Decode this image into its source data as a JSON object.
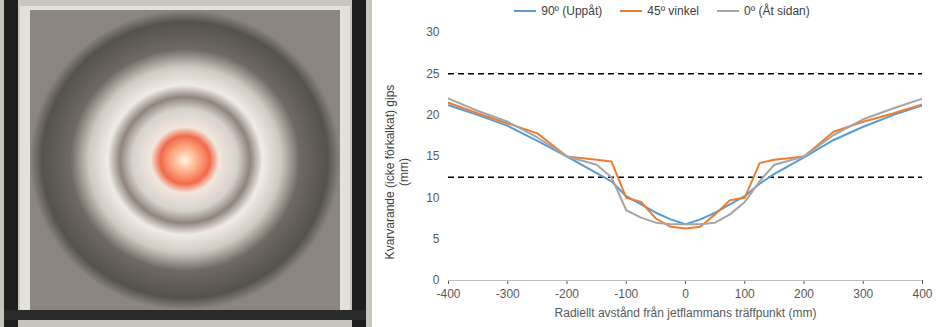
{
  "chart_data": {
    "type": "line",
    "x_label": "Radiellt avstånd från jetflammans träffpunkt (mm)",
    "y_label": "Kvarvarande (icke förkalkat) gips (mm)",
    "x": [
      -400,
      -350,
      -300,
      -250,
      -200,
      -150,
      -125,
      -100,
      -75,
      -50,
      -25,
      0,
      25,
      50,
      75,
      100,
      125,
      150,
      200,
      250,
      300,
      350,
      400
    ],
    "series": [
      {
        "name": "90º (Uppåt)",
        "color": "#5b9bd5",
        "values": [
          21.2,
          20.0,
          18.7,
          16.9,
          15.0,
          13.0,
          12.0,
          10.2,
          9.2,
          8.2,
          7.4,
          6.8,
          7.4,
          8.2,
          9.2,
          10.2,
          11.7,
          12.9,
          14.9,
          17.0,
          18.6,
          20.0,
          21.2
        ]
      },
      {
        "name": "45º vinkel",
        "color": "#ed7d31",
        "values": [
          21.5,
          20.2,
          19.0,
          17.8,
          15.0,
          14.6,
          14.4,
          10.0,
          9.5,
          7.5,
          6.5,
          6.3,
          6.5,
          8.0,
          9.7,
          10.0,
          14.2,
          14.6,
          15.0,
          18.0,
          19.2,
          20.2,
          21.3
        ]
      },
      {
        "name": "0º (Åt sidan)",
        "color": "#a5a5a5",
        "values": [
          22.0,
          20.5,
          19.2,
          17.3,
          15.0,
          14.0,
          12.5,
          8.5,
          7.6,
          7.0,
          6.8,
          6.8,
          6.8,
          7.0,
          8.0,
          9.5,
          12.0,
          14.0,
          15.0,
          17.6,
          19.5,
          20.8,
          22.0
        ]
      }
    ],
    "reference_lines": [
      25,
      12.5
    ],
    "xlim": [
      -400,
      400
    ],
    "xticks": [
      -400,
      -300,
      -200,
      -100,
      0,
      100,
      200,
      300,
      400
    ],
    "ylim": [
      0,
      30
    ],
    "yticks": [
      0,
      5,
      10,
      15,
      20,
      25,
      30
    ],
    "grid": false,
    "legend": "top"
  }
}
